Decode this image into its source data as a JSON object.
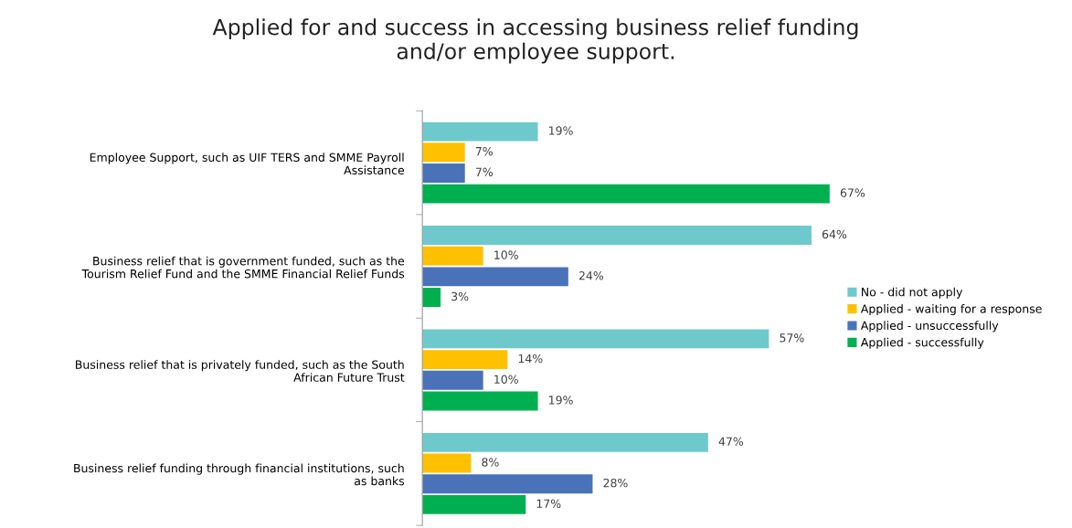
{
  "chart_data": {
    "type": "bar",
    "orientation": "horizontal",
    "title": "Applied for and success in accessing business relief funding\nand/or employee support.",
    "categories": [
      "Employee Support, such as UIF TERS and SMME Payroll\nAssistance",
      "Business relief that is government funded, such as the\nTourism Relief Fund and the SMME Financial Relief Funds",
      "Business relief that is privately funded, such as the South\nAfrican Future Trust",
      "Business relief funding through financial institutions, such\nas banks"
    ],
    "series": [
      {
        "name": "No - did not apply",
        "color": "#6ec9cc",
        "values": [
          19,
          64,
          57,
          47
        ],
        "value_labels": [
          "19%",
          "64%",
          "57%",
          "47%"
        ]
      },
      {
        "name": "Applied - waiting for a response",
        "color": "#ffc000",
        "values": [
          7,
          10,
          14,
          8
        ],
        "value_labels": [
          "7%",
          "10%",
          "14%",
          "8%"
        ]
      },
      {
        "name": "Applied - unsuccessfully",
        "color": "#4a72b8",
        "values": [
          7,
          24,
          10,
          28
        ],
        "value_labels": [
          "7%",
          "24%",
          "10%",
          "28%"
        ]
      },
      {
        "name": "Applied - successfully",
        "color": "#00b050",
        "values": [
          67,
          3,
          19,
          17
        ],
        "value_labels": [
          "67%",
          "3%",
          "19%",
          "17%"
        ]
      }
    ],
    "legend": "right",
    "grid": false
  }
}
